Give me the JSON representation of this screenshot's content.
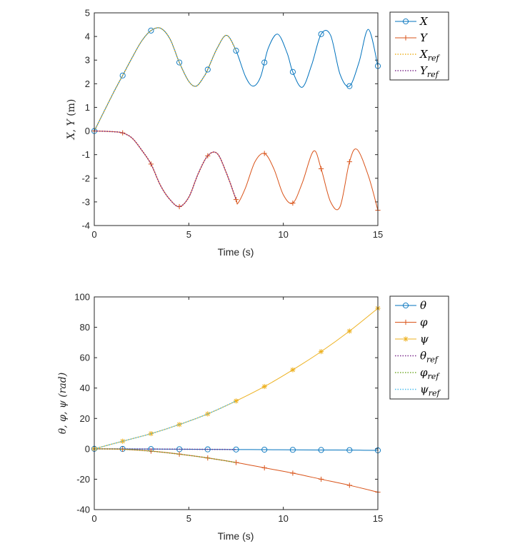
{
  "colors": {
    "blue": "#0072BD",
    "orange": "#D95319",
    "yellow": "#EDB120",
    "purple": "#7E2F8E",
    "green": "#77AC30",
    "cyan": "#4DBEEE"
  },
  "chart_data": [
    {
      "type": "line",
      "xlabel": "Time (s)",
      "ylabel": "X, Y (m)",
      "xlim": [
        0,
        15
      ],
      "ylim": [
        -4,
        5
      ],
      "xticks": [
        "0",
        "5",
        "10",
        "15"
      ],
      "yticks": [
        "-4",
        "-3",
        "-2",
        "-1",
        "0",
        "1",
        "2",
        "3",
        "4",
        "5"
      ],
      "legend": [
        "X",
        "Y",
        "X_ref",
        "Y_ref"
      ],
      "legend_position": "outside-top-right",
      "series": [
        {
          "name": "X",
          "marker": "circle",
          "color": "blue",
          "x": [
            0,
            1,
            1.5,
            2,
            2.5,
            3,
            3.5,
            4,
            4.5,
            5,
            5.4,
            5.8,
            6,
            6.5,
            7,
            7.5,
            8,
            8.4,
            8.8,
            9.2,
            9.7,
            10.2,
            10.5,
            11,
            11.5,
            12,
            12.5,
            13,
            13.5,
            14,
            14.5,
            15
          ],
          "y": [
            0,
            1.6,
            2.35,
            3.1,
            3.8,
            4.25,
            4.35,
            3.9,
            2.9,
            2.1,
            1.9,
            2.3,
            2.6,
            3.5,
            4.05,
            3.4,
            2.3,
            1.9,
            2.3,
            3.5,
            4.1,
            3.3,
            2.5,
            1.85,
            2.8,
            4.1,
            4.05,
            2.4,
            1.9,
            2.9,
            4.3,
            2.75
          ]
        },
        {
          "name": "Y",
          "marker": "plus",
          "color": "orange",
          "x": [
            0,
            0.5,
            1,
            1.5,
            2,
            2.5,
            3,
            3.5,
            4,
            4.5,
            5,
            5.5,
            6,
            6.5,
            7,
            7.5,
            7.6,
            8,
            8.5,
            9,
            9.5,
            10,
            10.5,
            11,
            11.6,
            12,
            12.5,
            13,
            13.5,
            13.9,
            14.5,
            15
          ],
          "y": [
            0,
            -0.01,
            -0.03,
            -0.08,
            -0.3,
            -0.8,
            -1.4,
            -2.3,
            -2.9,
            -3.2,
            -2.8,
            -1.8,
            -1.05,
            -0.95,
            -1.8,
            -2.9,
            -3.05,
            -2.4,
            -1.3,
            -0.95,
            -1.6,
            -2.7,
            -3.05,
            -2.2,
            -0.85,
            -1.6,
            -3.0,
            -3.2,
            -1.3,
            -0.78,
            -1.9,
            -3.35
          ]
        },
        {
          "name": "X_ref",
          "marker": "none",
          "style": "dotted",
          "color": "yellow",
          "x": [
            0,
            1,
            1.5,
            2,
            2.5,
            3,
            3.5,
            4,
            4.5,
            5,
            5.4,
            5.8,
            6,
            6.5,
            7,
            7.5
          ],
          "y": [
            0,
            1.6,
            2.35,
            3.1,
            3.8,
            4.25,
            4.35,
            3.9,
            2.9,
            2.1,
            1.9,
            2.3,
            2.6,
            3.5,
            4.05,
            3.4
          ]
        },
        {
          "name": "Y_ref",
          "marker": "none",
          "style": "dotted",
          "color": "purple",
          "x": [
            0,
            0.5,
            1,
            1.5,
            2,
            2.5,
            3,
            3.5,
            4,
            4.5,
            5,
            5.5,
            6,
            6.5,
            7,
            7.5
          ],
          "y": [
            0,
            -0.01,
            -0.03,
            -0.08,
            -0.3,
            -0.8,
            -1.4,
            -2.3,
            -2.9,
            -3.2,
            -2.8,
            -1.8,
            -1.05,
            -0.95,
            -1.8,
            -2.9
          ]
        }
      ]
    },
    {
      "type": "line",
      "xlabel": "Time (s)",
      "ylabel": "θ, φ, ψ (rad)",
      "xlim": [
        0,
        15
      ],
      "ylim": [
        -40,
        100
      ],
      "xticks": [
        "0",
        "5",
        "10",
        "15"
      ],
      "yticks": [
        "-40",
        "-20",
        "0",
        "20",
        "40",
        "60",
        "80",
        "100"
      ],
      "legend": [
        "θ",
        "φ",
        "ψ",
        "θ_ref",
        "φ_ref",
        "ψ_ref"
      ],
      "legend_position": "outside-top-right",
      "series": [
        {
          "name": "θ",
          "marker": "circle",
          "color": "blue",
          "x": [
            0,
            1.5,
            3,
            4.5,
            6,
            7.5,
            9,
            10.5,
            12,
            13.5,
            15
          ],
          "y": [
            0,
            -0.05,
            -0.15,
            -0.25,
            -0.35,
            -0.45,
            -0.55,
            -0.65,
            -0.75,
            -0.85,
            -1.0
          ]
        },
        {
          "name": "φ",
          "marker": "plus",
          "color": "orange",
          "x": [
            0,
            1.5,
            3,
            4.5,
            6,
            7.5,
            9,
            10.5,
            12,
            13.5,
            15
          ],
          "y": [
            0,
            -0.3,
            -1.5,
            -3.5,
            -6,
            -9,
            -12.5,
            -16,
            -20,
            -24,
            -28.5
          ]
        },
        {
          "name": "ψ",
          "marker": "asterisk",
          "color": "yellow",
          "x": [
            0,
            1.5,
            3,
            4.5,
            6,
            7.5,
            9,
            10.5,
            12,
            13.5,
            15
          ],
          "y": [
            0,
            5,
            10,
            16,
            23,
            31.5,
            41,
            52,
            64,
            77.5,
            92.5
          ]
        },
        {
          "name": "θ_ref",
          "marker": "none",
          "style": "dotted",
          "color": "purple",
          "x": [
            0,
            1.5,
            3,
            4.5,
            6,
            7.5
          ],
          "y": [
            0,
            -0.05,
            -0.15,
            -0.25,
            -0.35,
            -0.45
          ]
        },
        {
          "name": "φ_ref",
          "marker": "none",
          "style": "dotted",
          "color": "green",
          "x": [
            0,
            1.5,
            3,
            4.5,
            6,
            7.5
          ],
          "y": [
            0,
            -0.3,
            -1.5,
            -3.5,
            -6,
            -9
          ]
        },
        {
          "name": "ψ_ref",
          "marker": "none",
          "style": "dotted",
          "color": "cyan",
          "x": [
            0,
            1.5,
            3,
            4.5,
            6,
            7.5
          ],
          "y": [
            0,
            5,
            10,
            16,
            23,
            31.5
          ]
        }
      ]
    }
  ]
}
